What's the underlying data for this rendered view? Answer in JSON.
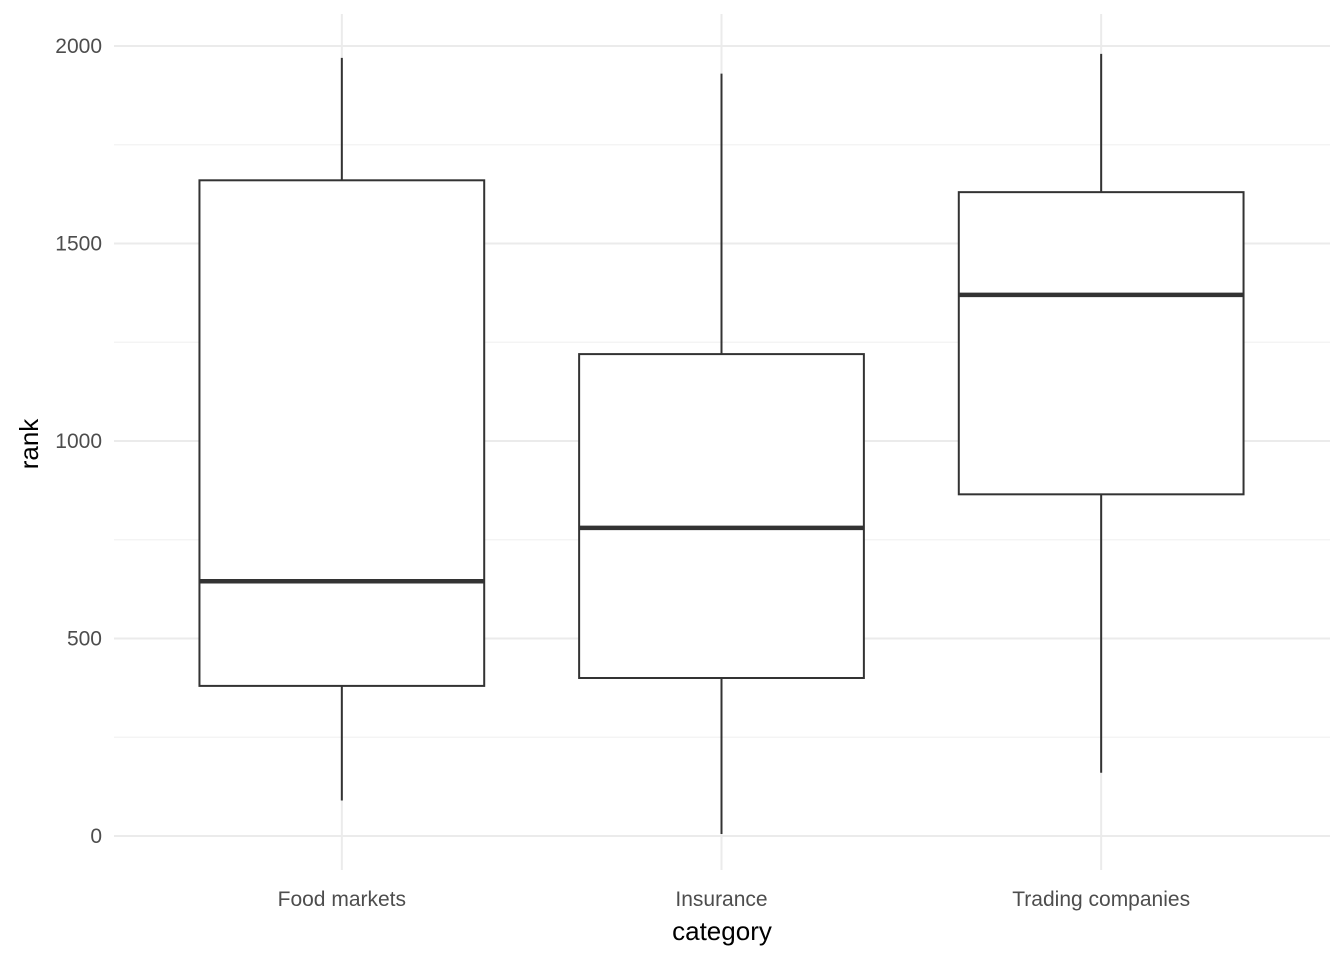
{
  "chart_data": {
    "type": "boxplot",
    "title": "",
    "xlabel": "category",
    "ylabel": "rank",
    "ylim": [
      -80,
      2080
    ],
    "yticks": [
      0,
      500,
      1000,
      1500,
      2000
    ],
    "grid": true,
    "legend": "none",
    "categories": [
      "Food markets",
      "Insurance",
      "Trading companies"
    ],
    "boxes": [
      {
        "category": "Food markets",
        "whisker_low": 90,
        "q1": 380,
        "median": 645,
        "q3": 1660,
        "whisker_high": 1970
      },
      {
        "category": "Insurance",
        "whisker_low": 5,
        "q1": 400,
        "median": 780,
        "q3": 1220,
        "whisker_high": 1930
      },
      {
        "category": "Trading companies",
        "whisker_low": 160,
        "q1": 865,
        "median": 1370,
        "q3": 1630,
        "whisker_high": 1980
      }
    ],
    "colors": {
      "grid_major": "#ebebeb",
      "grid_minor": "#f2f2f2",
      "box_stroke": "#333333",
      "box_fill": "#ffffff"
    }
  }
}
